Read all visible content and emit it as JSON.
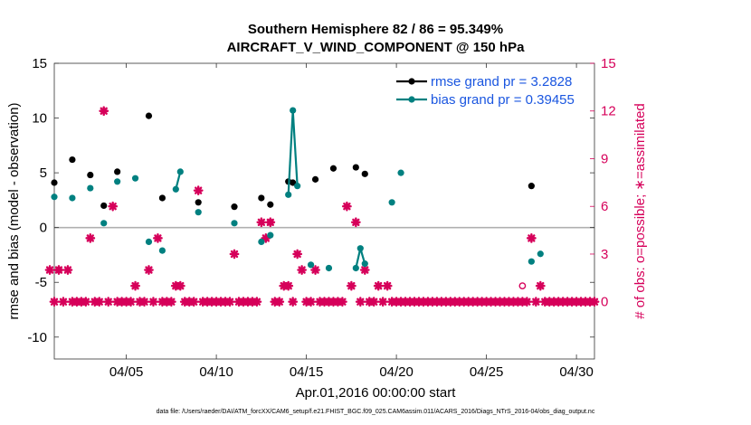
{
  "chart_data": {
    "type": "line",
    "title": "Southern Hemisphere 82 / 86 = 95.349%",
    "subtitle": "AIRCRAFT_V_WIND_COMPONENT @ 150 hPa",
    "xlabel": "Apr.01,2016 00:00:00 start",
    "ylabel": "rmse and bias (model - observation)",
    "ylabel_right": "# of obs: o=possible; ∗=assimilated",
    "xlim": [
      1,
      31
    ],
    "ylim": [
      -12,
      15
    ],
    "ylim_right": [
      -3.6,
      15
    ],
    "x_ticks": [
      5,
      10,
      15,
      20,
      25,
      30
    ],
    "x_tick_labels": [
      "04/05",
      "04/10",
      "04/15",
      "04/20",
      "04/25",
      "04/30"
    ],
    "y_ticks": [
      -10,
      -5,
      0,
      5,
      10,
      15
    ],
    "y_tick_labels": [
      "-10",
      "-5",
      "0",
      "5",
      "10",
      "15"
    ],
    "y_right_ticks": [
      0,
      3,
      6,
      9,
      12,
      15
    ],
    "y_right_tick_labels": [
      "0",
      "3",
      "6",
      "9",
      "12",
      "15"
    ],
    "grid": false,
    "legend_position": "top-right",
    "colors": {
      "rmse": "#000000",
      "bias": "#008080",
      "obs": "#d6005a",
      "zero_line": "#b0b0b0",
      "legend_text": "#1a56e0"
    },
    "series": [
      {
        "name": "rmse grand pr = 3.2828",
        "legend_label": "rmse grand pr = 3.2828",
        "values": [
          [
            1.0,
            4.1
          ],
          [
            2.0,
            6.2
          ],
          [
            3.0,
            4.8
          ],
          [
            3.75,
            2.0
          ],
          [
            4.5,
            5.1
          ],
          [
            6.25,
            10.2
          ],
          [
            7.0,
            2.7
          ],
          [
            9.0,
            2.3
          ],
          [
            11.0,
            1.9
          ],
          [
            12.5,
            2.7
          ],
          [
            13.0,
            2.1
          ],
          [
            14.0,
            4.2
          ],
          [
            14.25,
            4.1
          ],
          [
            15.5,
            4.4
          ],
          [
            16.5,
            5.4
          ],
          [
            17.75,
            5.5
          ],
          [
            18.25,
            4.9
          ],
          [
            27.5,
            3.8
          ]
        ]
      },
      {
        "name": "bias grand pr = 0.39455",
        "legend_label": "bias grand pr = 0.39455",
        "values": [
          [
            1.0,
            2.8
          ],
          [
            2.0,
            2.7
          ],
          [
            3.0,
            3.6
          ],
          [
            3.75,
            0.4
          ],
          [
            4.5,
            4.2
          ],
          [
            5.5,
            4.5
          ],
          [
            6.25,
            -1.3
          ],
          [
            7.0,
            -2.1
          ],
          [
            7.75,
            3.5
          ],
          [
            8.0,
            5.1
          ],
          [
            9.0,
            1.4
          ],
          [
            11.0,
            0.4
          ],
          [
            12.5,
            -1.3
          ],
          [
            13.0,
            -0.7
          ],
          [
            14.0,
            3.0
          ],
          [
            14.25,
            10.7
          ],
          [
            14.5,
            3.8
          ],
          [
            15.25,
            -3.4
          ],
          [
            16.25,
            -3.7
          ],
          [
            17.75,
            -3.7
          ],
          [
            18.0,
            -1.9
          ],
          [
            18.25,
            -3.3
          ],
          [
            19.75,
            2.3
          ],
          [
            20.25,
            5.0
          ],
          [
            27.5,
            -3.1
          ],
          [
            28.0,
            -2.4
          ]
        ]
      }
    ],
    "obs_assimilated": [
      [
        0.75,
        2
      ],
      [
        1.25,
        2
      ],
      [
        1.75,
        2
      ],
      [
        3.0,
        4
      ],
      [
        3.75,
        12
      ],
      [
        4.25,
        6
      ],
      [
        5.5,
        1
      ],
      [
        6.25,
        2
      ],
      [
        6.75,
        4
      ],
      [
        7.75,
        1
      ],
      [
        8.0,
        1
      ],
      [
        9.0,
        7
      ],
      [
        11.0,
        3
      ],
      [
        12.5,
        5
      ],
      [
        12.75,
        4
      ],
      [
        13.0,
        5
      ],
      [
        13.75,
        1
      ],
      [
        14.0,
        1
      ],
      [
        14.5,
        3
      ],
      [
        14.75,
        2
      ],
      [
        15.5,
        2
      ],
      [
        17.25,
        6
      ],
      [
        17.5,
        1
      ],
      [
        17.75,
        5
      ],
      [
        18.25,
        2
      ],
      [
        19.0,
        1
      ],
      [
        19.5,
        1
      ],
      [
        27.5,
        4
      ],
      [
        28.0,
        1
      ]
    ],
    "obs_possible": [
      [
        1.25,
        2
      ],
      [
        13.0,
        5
      ],
      [
        27.0,
        1
      ]
    ],
    "obs_zero_step": 0.25,
    "obs_zero_range": [
      1.0,
      31.0
    ],
    "zero_line": 0
  },
  "footer": "data file: /Users/raeder/DAI/ATM_forcXX/CAM6_setup/f.e21.FHIST_BGC.f09_025.CAM6assim.011/ACARS_2016/Diags_NTrS_2016-04/obs_diag_output.nc"
}
